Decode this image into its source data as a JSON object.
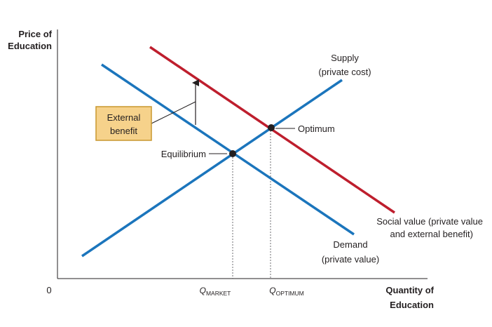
{
  "axes": {
    "y_title_line1": "Price of",
    "y_title_line2": "Education",
    "x_title_line1": "Quantity of",
    "x_title_line2": "Education",
    "origin": "0"
  },
  "curves": {
    "supply": {
      "line1": "Supply",
      "line2": "(private cost)",
      "color": "#1b75bc"
    },
    "demand": {
      "line1": "Demand",
      "line2": "(private value)",
      "color": "#1b75bc"
    },
    "social_value": {
      "line1": "Social value (private value",
      "line2": "and external benefit)",
      "color": "#be1e2d"
    }
  },
  "points": {
    "equilibrium": "Equilibrium",
    "optimum": "Optimum"
  },
  "external_benefit": {
    "line1": "External",
    "line2": "benefit",
    "box_fill": "#f6d28b",
    "box_stroke": "#c8972f"
  },
  "quantities": {
    "market": {
      "q": "Q",
      "sub": "MARKET"
    },
    "optimum": {
      "q": "Q",
      "sub": "OPTIMUM"
    }
  }
}
